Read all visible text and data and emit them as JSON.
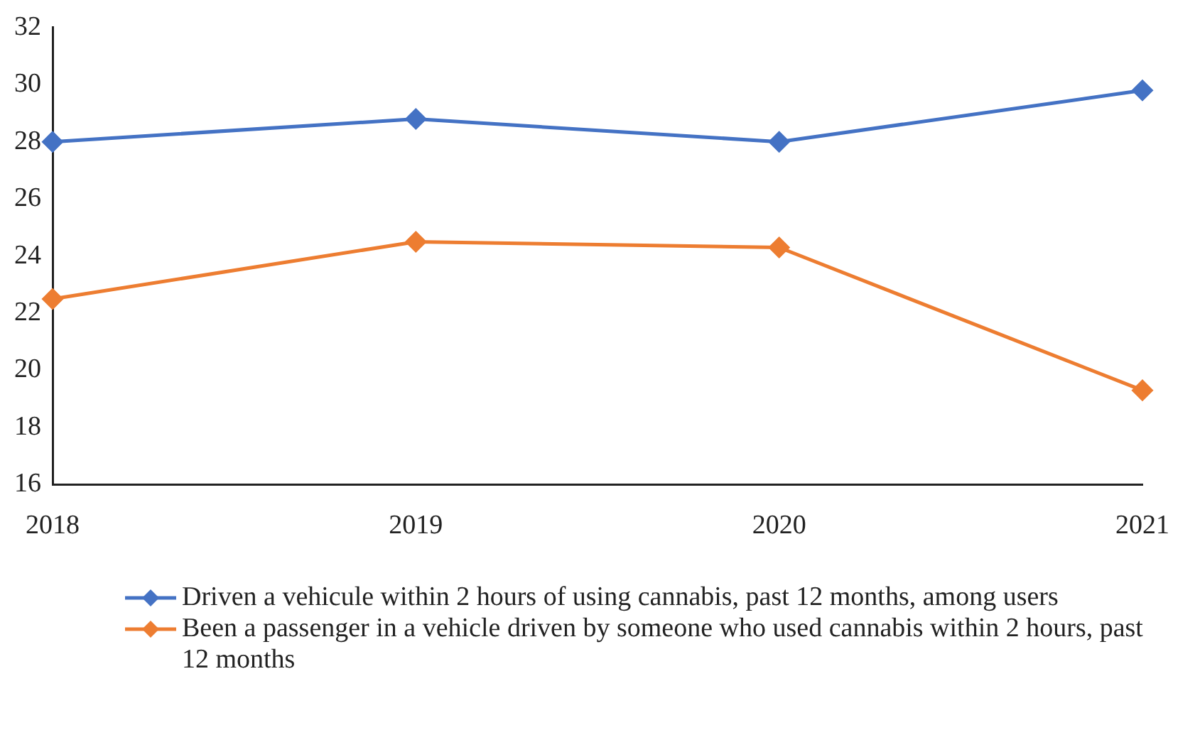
{
  "chart_data": {
    "type": "line",
    "categories": [
      "2018",
      "2019",
      "2020",
      "2021"
    ],
    "series": [
      {
        "name": "Driven a vehicule within 2 hours of using cannabis, past 12 months, among users",
        "color": "#4472c4",
        "values": [
          28.0,
          28.8,
          28.0,
          29.8
        ]
      },
      {
        "name": "Been a passenger in a vehicle driven by someone who used cannabis within 2 hours, past 12 months",
        "color": "#ed7d31",
        "values": [
          22.5,
          24.5,
          24.3,
          19.3
        ]
      }
    ],
    "ylim": [
      16,
      32
    ],
    "yticks": [
      16,
      18,
      20,
      22,
      24,
      26,
      28,
      30,
      32
    ],
    "grid": false,
    "legend": "bottom",
    "marker": "diamond",
    "line_style": "solid"
  }
}
